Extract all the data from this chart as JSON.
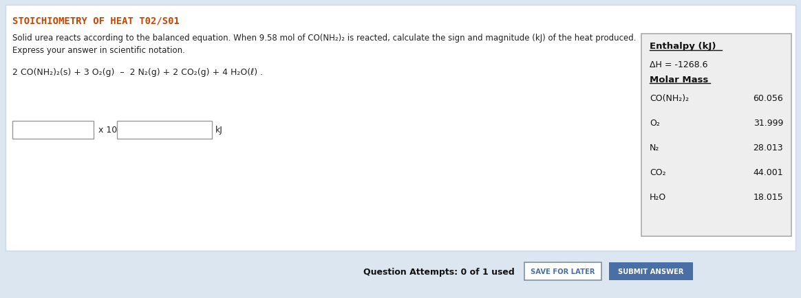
{
  "title": "STOICHIOMETRY OF HEAT T02/S01",
  "title_color": "#cc4400",
  "bg_color": "#ffffff",
  "outer_bg": "#dce6f0",
  "description_line1": "Solid urea reacts according to the balanced equation. When 9.58 mol of CO(NH₂)₂ is reacted, calculate the sign and magnitude (kJ) of the heat produced.",
  "description_line2": "Express your answer in scientific notation.",
  "equation": "2 CO(NH₂)₂(s) + 3 O₂(g)  –  2 N₂(g) + 2 CO₂(g) + 4 H₂O(ℓ) .",
  "input_label": "x 10",
  "input_unit": "kJ",
  "table_header1": "Enthalpy (kJ)",
  "table_delta_h": "ΔH = -1268.6",
  "table_header2": "Molar Mass",
  "table_rows": [
    [
      "CO(NH₂)₂",
      "60.056"
    ],
    [
      "O₂",
      "31.999"
    ],
    [
      "N₂",
      "28.013"
    ],
    [
      "CO₂",
      "44.001"
    ],
    [
      "H₂O",
      "18.015"
    ]
  ],
  "footer_text": "Question Attempts: 0 of 1 used",
  "btn1_text": "SAVE FOR LATER",
  "btn2_text": "SUBMIT ANSWER",
  "btn1_color": "#ffffff",
  "btn2_color": "#4a6fa5",
  "btn_border": "#8090a0",
  "footer_bg": "#dce6f0",
  "table_bg": "#eeeeee",
  "table_border": "#aaaaaa",
  "main_border": "#ccd8e8"
}
